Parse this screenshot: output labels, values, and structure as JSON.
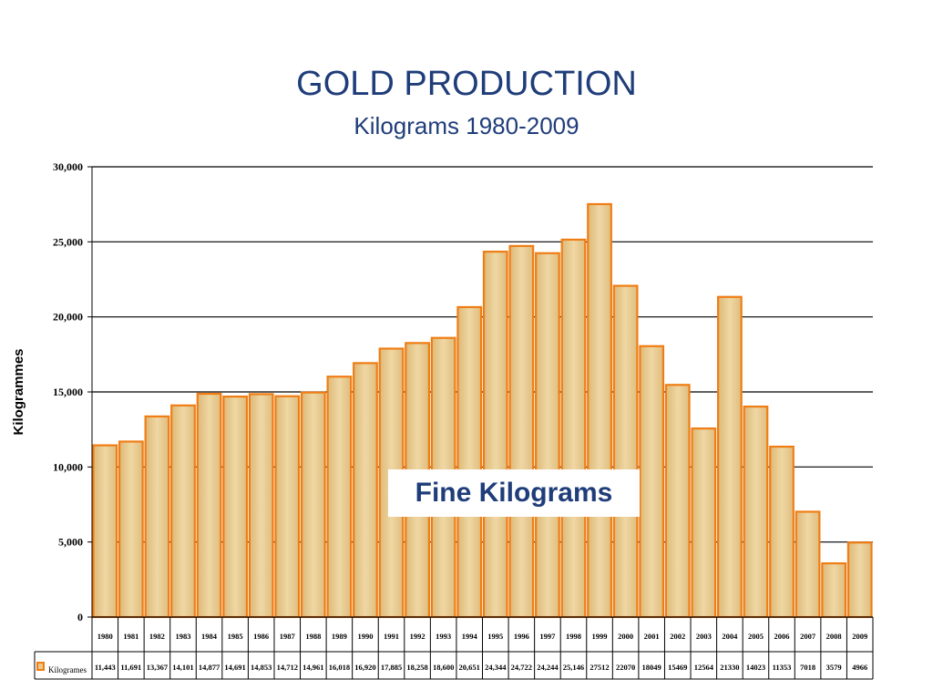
{
  "chart_data": {
    "type": "bar",
    "title": "GOLD PRODUCTION",
    "subtitle": "Kilograms 1980-2009",
    "ylabel": "Kilogrammes",
    "ylim": [
      0,
      30000
    ],
    "yticks": [
      "0",
      "5,000",
      "10,000",
      "15,000",
      "20,000",
      "25,000",
      "30,000"
    ],
    "grid": true,
    "annotation": "Fine Kilograms",
    "colors": {
      "bar_fill": "#e8c98a",
      "bar_stroke": "#f07d14",
      "title": "#1f3d7a"
    },
    "categories": [
      "1980",
      "1981",
      "1982",
      "1983",
      "1984",
      "1985",
      "1986",
      "1987",
      "1988",
      "1989",
      "1990",
      "1991",
      "1992",
      "1993",
      "1994",
      "1995",
      "1996",
      "1997",
      "1998",
      "1999",
      "2000",
      "2001",
      "2002",
      "2003",
      "2004",
      "2005",
      "2006",
      "2007",
      "2008",
      "2009"
    ],
    "series": [
      {
        "name": "Kilogrames",
        "values": [
          11443,
          11691,
          13367,
          14101,
          14877,
          14691,
          14853,
          14712,
          14961,
          16018,
          16920,
          17885,
          18258,
          18600,
          20651,
          24344,
          24722,
          24244,
          25146,
          27512,
          22070,
          18049,
          15469,
          12564,
          21330,
          14023,
          11353,
          7018,
          3579,
          4966
        ],
        "labels": [
          "11,443",
          "11,691",
          "13,367",
          "14,101",
          "14,877",
          "14,691",
          "14,853",
          "14,712",
          "14,961",
          "16,018",
          "16,920",
          "17,885",
          "18,258",
          "18,600",
          "20,651",
          "24,344",
          "24,722",
          "24,244",
          "25,146",
          "27512",
          "22070",
          "18049",
          "15469",
          "12564",
          "21330",
          "14023",
          "11353",
          "7018",
          "3579",
          "4966"
        ]
      }
    ]
  }
}
